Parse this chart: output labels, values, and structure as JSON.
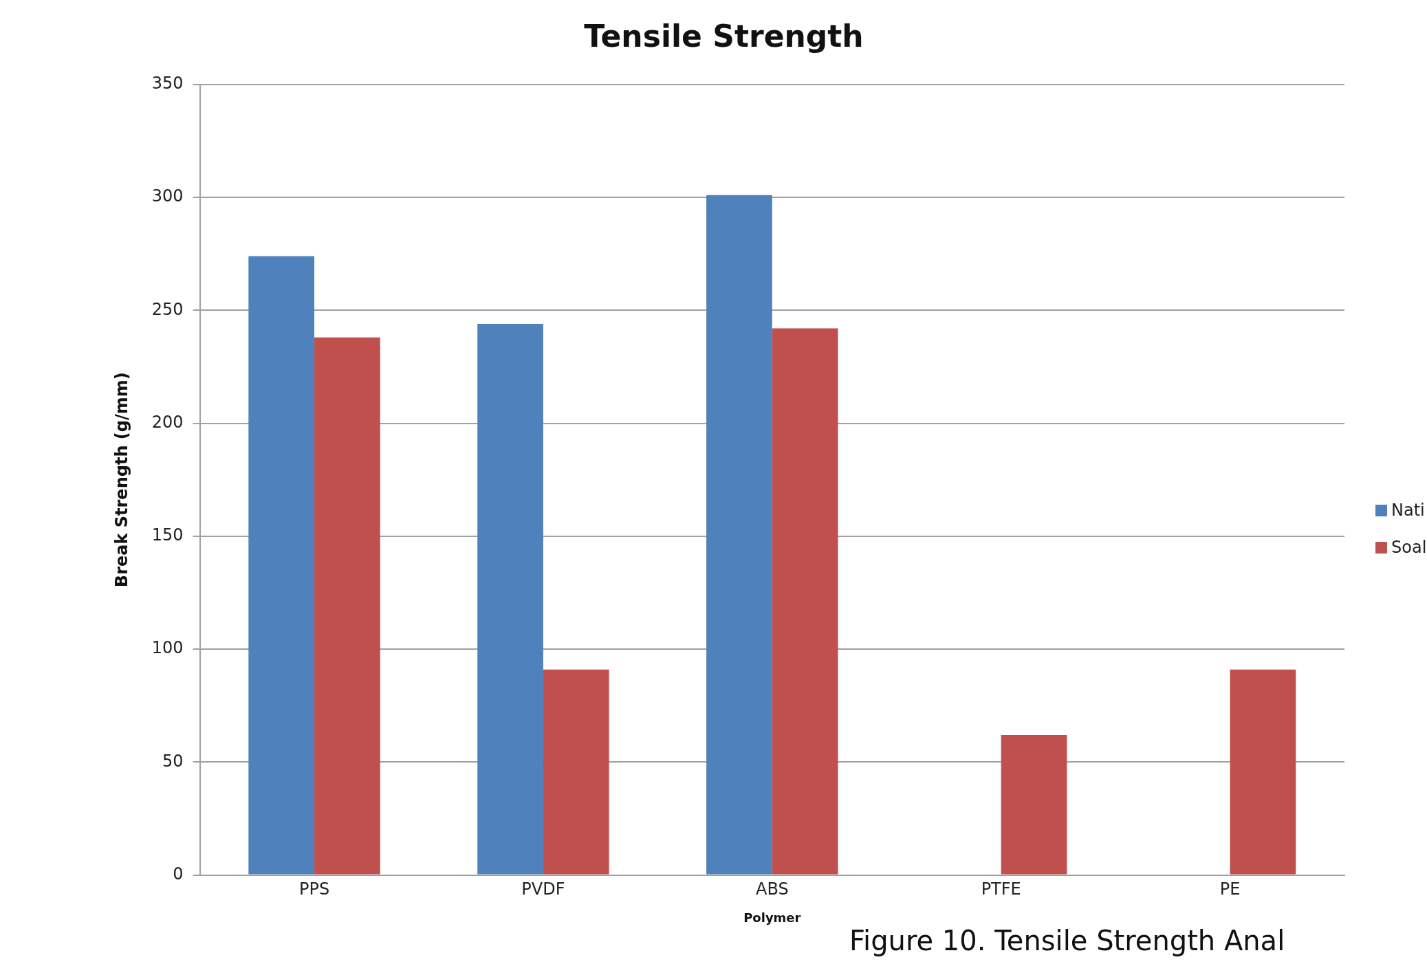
{
  "chart_data": {
    "type": "bar",
    "title": "Tensile Strength",
    "xlabel": "Polymer",
    "ylabel": "Break Strength (g/mm)",
    "categories": [
      "PPS",
      "PVDF",
      "ABS",
      "PTFE",
      "PE"
    ],
    "series": [
      {
        "name": "Nati",
        "color": "#4f81bd",
        "values": [
          274,
          244,
          301,
          null,
          null
        ]
      },
      {
        "name": "Soal",
        "color": "#c0504d",
        "values": [
          238,
          91,
          242,
          62,
          91
        ]
      }
    ],
    "ylim": [
      0,
      350
    ],
    "yticks": [
      0,
      50,
      100,
      150,
      200,
      250,
      300,
      350
    ],
    "grid": "y",
    "legend": "right",
    "annotations": [
      "Figure 10. Tensile Strength Anal"
    ]
  }
}
